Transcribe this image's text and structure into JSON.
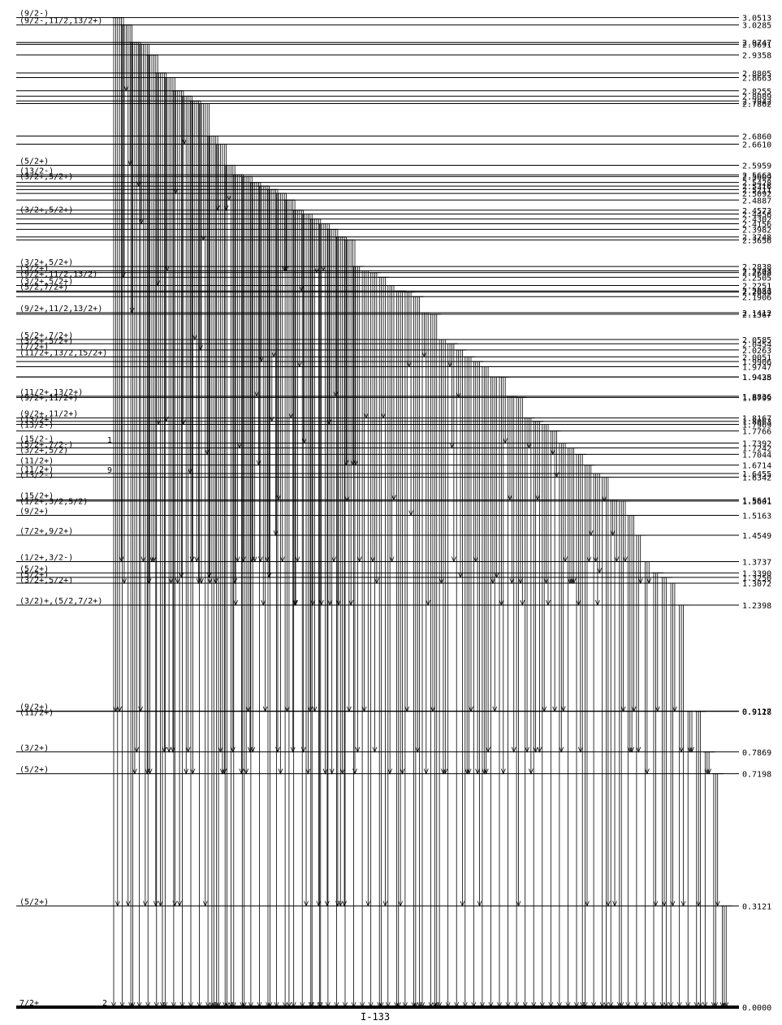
{
  "title": "I-133",
  "levels": [
    {
      "energy": "3.0513",
      "spin": "(9/2-)"
    },
    {
      "energy": "3.0285",
      "spin": "(9/2-,11/2,13/2+)"
    },
    {
      "energy": "2.9747",
      "spin": ""
    },
    {
      "energy": "2.9691",
      "spin": ""
    },
    {
      "energy": "2.9358",
      "spin": ""
    },
    {
      "energy": "2.8805",
      "spin": ""
    },
    {
      "energy": "2.8663",
      "spin": ""
    },
    {
      "energy": "2.8255",
      "spin": ""
    },
    {
      "energy": "2.8089",
      "spin": ""
    },
    {
      "energy": "2.7942",
      "spin": ""
    },
    {
      "energy": "2.7862",
      "spin": ""
    },
    {
      "energy": "2.6860",
      "spin": ""
    },
    {
      "energy": "2.6610",
      "spin": ""
    },
    {
      "energy": "2.5959",
      "spin": "(5/2+)"
    },
    {
      "energy": "2.5663",
      "spin": "(13/2-)"
    },
    {
      "energy": "2.5609",
      "spin": "(3/2+,5/2+)"
    },
    {
      "energy": "2.5428",
      "spin": ""
    },
    {
      "energy": "2.5316",
      "spin": ""
    },
    {
      "energy": "2.5211",
      "spin": ""
    },
    {
      "energy": "2.5092",
      "spin": ""
    },
    {
      "energy": "2.4887",
      "spin": ""
    },
    {
      "energy": "2.4573",
      "spin": ""
    },
    {
      "energy": "2.4456",
      "spin": "(3/2+,5/2+)"
    },
    {
      "energy": "2.4302",
      "spin": ""
    },
    {
      "energy": "2.4156",
      "spin": ""
    },
    {
      "energy": "2.3982",
      "spin": ""
    },
    {
      "energy": "2.3748",
      "spin": ""
    },
    {
      "energy": "2.3656",
      "spin": ""
    },
    {
      "energy": "2.2838",
      "spin": "(3/2+,5/2+)"
    },
    {
      "energy": "2.2703",
      "spin": ""
    },
    {
      "energy": "2.2648",
      "spin": "(3/2+)"
    },
    {
      "energy": "2.2505",
      "spin": "(9/2+,11/2,13/2)"
    },
    {
      "energy": "2.2251",
      "spin": "(3/2+,5/2+)"
    },
    {
      "energy": "2.2083",
      "spin": "(5/2,7/2+)"
    },
    {
      "energy": "2.2049",
      "spin": ""
    },
    {
      "energy": "2.1906",
      "spin": ""
    },
    {
      "energy": "2.1412",
      "spin": "(9/2+,11/2,13/2+)"
    },
    {
      "energy": "2.1367",
      "spin": ""
    },
    {
      "energy": "2.0585",
      "spin": "(5/2+,7/2+)"
    },
    {
      "energy": "2.0454",
      "spin": "(3/2+,5/2+)"
    },
    {
      "energy": "2.0263",
      "spin": "(7/2+)"
    },
    {
      "energy": "2.0051",
      "spin": "(11/2+,13/2,15/2+)"
    },
    {
      "energy": "1.9906",
      "spin": ""
    },
    {
      "energy": "1.9747",
      "spin": ""
    },
    {
      "energy": "1.9435",
      "spin": ""
    },
    {
      "energy": "1.9428",
      "spin": ""
    },
    {
      "energy": "1.8836",
      "spin": "(11/2+,13/2+)"
    },
    {
      "energy": "1.8799",
      "spin": "(9/2+,11/2+)"
    },
    {
      "energy": "1.8167",
      "spin": "(9/2+,11/2+)"
    },
    {
      "energy": "1.8063",
      "spin": "(13/2+)"
    },
    {
      "energy": "1.7969",
      "spin": "(13/2-)"
    },
    {
      "energy": "1.7766",
      "spin": ""
    },
    {
      "energy": "1.7392",
      "spin": "(15/2-)"
    },
    {
      "energy": "1.7242",
      "spin": "(5/2+,7/2-)"
    },
    {
      "energy": "1.7044",
      "spin": "(3/2+,5/2)"
    },
    {
      "energy": "1.6714",
      "spin": "(11/2+)"
    },
    {
      "energy": "1.6455",
      "spin": "(11/2+)"
    },
    {
      "energy": "1.6342",
      "spin": "(13/2-)"
    },
    {
      "energy": "1.5641",
      "spin": "(15/2+)"
    },
    {
      "energy": "1.5601",
      "spin": "(1/2+,3/2,5/2)"
    },
    {
      "energy": "1.5163",
      "spin": "(9/2+)"
    },
    {
      "energy": "1.4549",
      "spin": "(7/2+,9/2+)"
    },
    {
      "energy": "1.3737",
      "spin": "(1/2+,3/2-)"
    },
    {
      "energy": "1.3390",
      "spin": "(5/2+)"
    },
    {
      "energy": "1.3250",
      "spin": "(5/2+)"
    },
    {
      "energy": "1.3072",
      "spin": "(3/2+,5/2+)"
    },
    {
      "energy": "1.2398",
      "spin": "(3/2)+,(5/2,7/2+)"
    },
    {
      "energy": "0.9127",
      "spin": "(9/2+)"
    },
    {
      "energy": "0.9118",
      "spin": "(11/2+)"
    },
    {
      "energy": "0.7869",
      "spin": "(3/2+)"
    },
    {
      "energy": "0.7198",
      "spin": "(5/2+)"
    },
    {
      "energy": "0.3121",
      "spin": "(5/2+)"
    },
    {
      "energy": "0.0000",
      "spin": "7/2+"
    }
  ],
  "annotations": [
    "1",
    "9",
    "2"
  ]
}
